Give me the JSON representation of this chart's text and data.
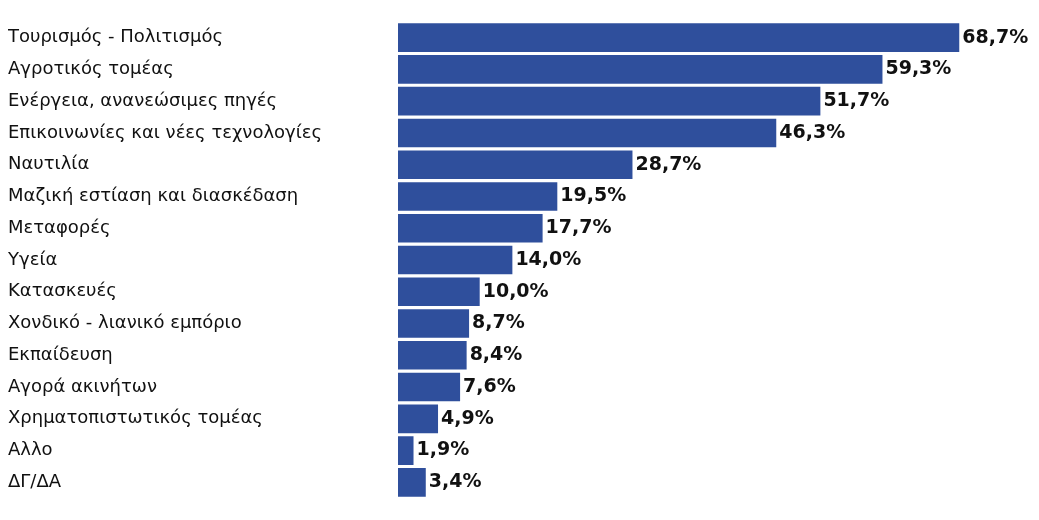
{
  "chart_data": {
    "type": "bar",
    "orientation": "horizontal",
    "categories": [
      "Τουρισμός - Πολιτισμός",
      "Αγροτικός τομέας",
      "Ενέργεια, ανανεώσιμες πηγές",
      "Επικοινωνίες και νέες τεχνολογίες",
      "Ναυτιλία",
      "Μαζική εστίαση και διασκέδαση",
      "Μεταφορές",
      "Υγεία",
      "Κατασκευές",
      "Χονδικό - λιανικό εμπόριο",
      "Εκπαίδευση",
      "Αγορά ακινήτων",
      "Χρηματοπιστωτικός τομέας",
      "Αλλο",
      "ΔΓ/ΔΑ"
    ],
    "values": [
      68.7,
      59.3,
      51.7,
      46.3,
      28.7,
      19.5,
      17.7,
      14.0,
      10.0,
      8.7,
      8.4,
      7.6,
      4.9,
      1.9,
      3.4
    ],
    "value_labels": [
      "68,7%",
      "59,3%",
      "51,7%",
      "46,3%",
      "28,7%",
      "19,5%",
      "17,7%",
      "14,0%",
      "10,0%",
      "8,7%",
      "8,4%",
      "7,6%",
      "4,9%",
      "1,9%",
      "3,4%"
    ],
    "color": "#2f4f9c",
    "tick_labels": "y",
    "grid": false,
    "legend": false
  }
}
